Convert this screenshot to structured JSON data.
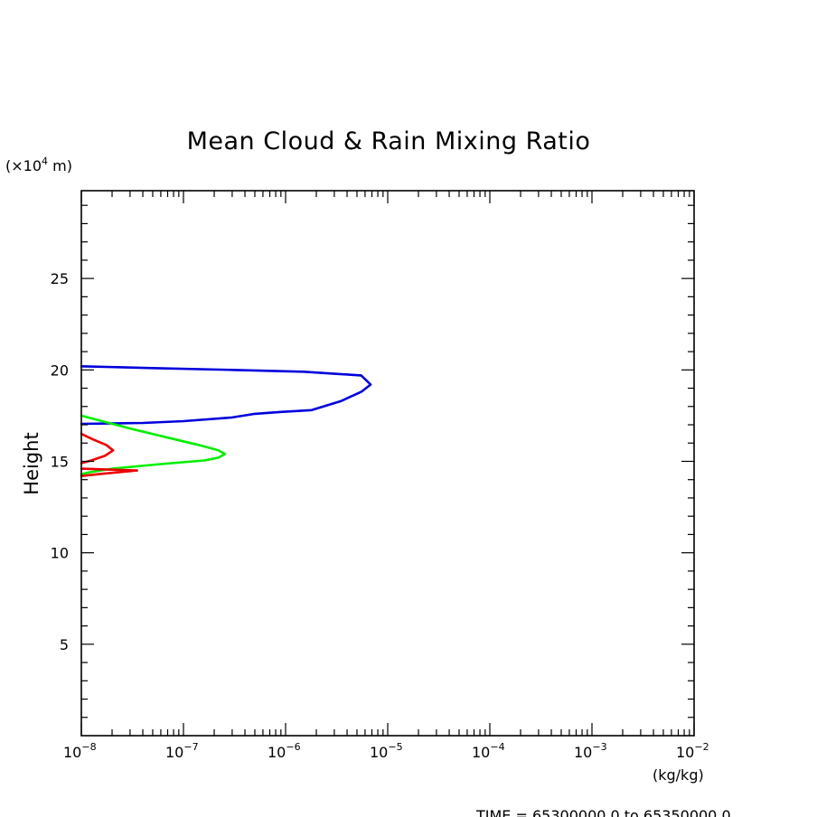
{
  "chart_data": {
    "type": "line",
    "title": "Mean Cloud & Rain Mixing Ratio",
    "ylabel": "Height",
    "y_unit_label": {
      "prefix": "(×10",
      "exponent": "4",
      "suffix": " m)"
    },
    "x_unit_label": "(kg/kg)",
    "footer": "TIME = 65300000.0 to 65350000.0",
    "x_scale": "log",
    "xlim": [
      1e-08,
      0.01
    ],
    "ylim": [
      0,
      29.8
    ],
    "x_ticks": [
      {
        "value": 1e-08,
        "base": "10",
        "exp": "−8"
      },
      {
        "value": 1e-07,
        "base": "10",
        "exp": "−7"
      },
      {
        "value": 1e-06,
        "base": "10",
        "exp": "−6"
      },
      {
        "value": 1e-05,
        "base": "10",
        "exp": "−5"
      },
      {
        "value": 0.0001,
        "base": "10",
        "exp": "−4"
      },
      {
        "value": 0.001,
        "base": "10",
        "exp": "−3"
      },
      {
        "value": 0.01,
        "base": "10",
        "exp": "−2"
      }
    ],
    "y_ticks": [
      {
        "value": 5,
        "label": "5"
      },
      {
        "value": 10,
        "label": "10"
      },
      {
        "value": 15,
        "label": "15"
      },
      {
        "value": 20,
        "label": "20"
      },
      {
        "value": 25,
        "label": "25"
      }
    ],
    "grid": false,
    "series": [
      {
        "color": "#0000dd",
        "points": [
          [
            1e-08,
            20.2
          ],
          [
            5e-08,
            20.1
          ],
          [
            3e-07,
            20.0
          ],
          [
            1.5e-06,
            19.9
          ],
          [
            5.5e-06,
            19.7
          ],
          [
            6.8e-06,
            19.2
          ],
          [
            5.5e-06,
            18.8
          ],
          [
            3.5e-06,
            18.3
          ],
          [
            1.8e-06,
            17.8
          ],
          [
            9e-07,
            17.7
          ],
          [
            5e-07,
            17.6
          ],
          [
            3e-07,
            17.4
          ],
          [
            1e-07,
            17.2
          ],
          [
            4e-08,
            17.1
          ],
          [
            1e-08,
            17.05
          ]
        ]
      },
      {
        "color": "#00ee00",
        "points": [
          [
            1e-08,
            17.5
          ],
          [
            1.6e-08,
            17.2
          ],
          [
            3e-08,
            16.8
          ],
          [
            7e-08,
            16.3
          ],
          [
            1.4e-07,
            15.9
          ],
          [
            2.2e-07,
            15.6
          ],
          [
            2.55e-07,
            15.4
          ],
          [
            2.2e-07,
            15.2
          ],
          [
            1.6e-07,
            15.05
          ],
          [
            6e-08,
            14.85
          ],
          [
            2e-08,
            14.6
          ],
          [
            1.2e-08,
            14.4
          ],
          [
            1e-08,
            14.3
          ]
        ]
      },
      {
        "color": "#ee0000",
        "points": [
          [
            1e-08,
            16.5
          ],
          [
            1.3e-08,
            16.2
          ],
          [
            1.75e-08,
            15.9
          ],
          [
            2.05e-08,
            15.6
          ],
          [
            1.7e-08,
            15.3
          ],
          [
            1.25e-08,
            15.05
          ],
          [
            1e-08,
            14.9
          ]
        ]
      },
      {
        "color": "#ee0000",
        "points": [
          [
            1e-08,
            14.6
          ],
          [
            3.5e-08,
            14.5
          ]
        ]
      },
      {
        "color": "#ee0000",
        "points": [
          [
            1e-08,
            14.2
          ],
          [
            1.5e-08,
            14.3
          ],
          [
            3.5e-08,
            14.5
          ]
        ]
      }
    ]
  }
}
